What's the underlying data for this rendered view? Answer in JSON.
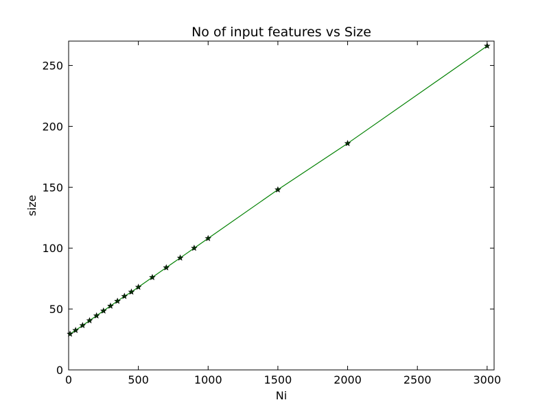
{
  "chart_data": {
    "type": "line",
    "title": "No of input features vs Size",
    "xlabel": "Ni",
    "ylabel": "size",
    "xlim": [
      0,
      3050
    ],
    "ylim": [
      0,
      270
    ],
    "xticks": [
      0,
      500,
      1000,
      1500,
      2000,
      2500,
      3000
    ],
    "yticks": [
      0,
      50,
      100,
      150,
      200,
      250
    ],
    "grid": false,
    "legend": "none",
    "series": [
      {
        "color": "#008000",
        "marker": "star",
        "marker_color": "#003300",
        "x": [
          10,
          50,
          100,
          150,
          200,
          250,
          300,
          350,
          400,
          450,
          500,
          600,
          700,
          800,
          900,
          1000,
          1500,
          2000,
          3000
        ],
        "y": [
          29.5,
          32.5,
          36.5,
          40.5,
          44.5,
          48.5,
          52.5,
          56.5,
          60.5,
          64,
          68,
          76,
          84,
          92,
          100,
          108,
          148,
          186,
          266
        ]
      }
    ]
  }
}
